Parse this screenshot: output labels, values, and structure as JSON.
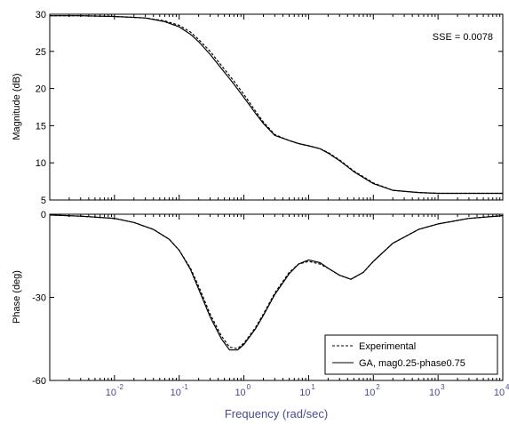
{
  "chart_data": [
    {
      "type": "line",
      "title": "",
      "xlabel": "",
      "ylabel": "Magnitude (dB)",
      "xscale": "log",
      "xlim": [
        0.001,
        10000
      ],
      "ylim": [
        5,
        30
      ],
      "yticks": [
        5,
        10,
        15,
        20,
        25,
        30
      ],
      "grid": false,
      "annotation": "SSE = 0.0078",
      "series": [
        {
          "name": "Experimental",
          "style": "dashed",
          "x": [
            0.001,
            0.003,
            0.01,
            0.03,
            0.06,
            0.1,
            0.15,
            0.2,
            0.3,
            0.5,
            0.7,
            1,
            1.5,
            2,
            3,
            5,
            7,
            10,
            15,
            20,
            30,
            50,
            100,
            200,
            500,
            1000,
            10000
          ],
          "y": [
            29.8,
            29.8,
            29.7,
            29.5,
            29.1,
            28.5,
            27.6,
            26.6,
            25.0,
            22.6,
            21.0,
            19.2,
            17.0,
            15.5,
            13.8,
            13.0,
            12.6,
            12.3,
            11.9,
            11.4,
            10.4,
            8.9,
            7.3,
            6.3,
            6.0,
            5.9,
            5.9
          ]
        },
        {
          "name": "GA, mag0.25-phase0.75",
          "style": "solid",
          "x": [
            0.001,
            0.003,
            0.01,
            0.03,
            0.06,
            0.1,
            0.15,
            0.2,
            0.3,
            0.5,
            0.7,
            1,
            1.5,
            2,
            3,
            5,
            7,
            10,
            15,
            20,
            30,
            50,
            100,
            200,
            500,
            1000,
            10000
          ],
          "y": [
            29.8,
            29.8,
            29.7,
            29.5,
            29.0,
            28.3,
            27.3,
            26.3,
            24.6,
            22.2,
            20.6,
            18.8,
            16.7,
            15.3,
            13.7,
            13.0,
            12.6,
            12.3,
            11.9,
            11.3,
            10.3,
            8.8,
            7.2,
            6.3,
            6.0,
            5.9,
            5.9
          ]
        }
      ]
    },
    {
      "type": "line",
      "title": "",
      "xlabel": "Frequency (rad/sec)",
      "ylabel": "Phase (deg)",
      "xscale": "log",
      "xlim": [
        0.001,
        10000
      ],
      "ylim": [
        -60,
        0
      ],
      "yticks": [
        -60,
        -30,
        0
      ],
      "xticks": [
        0.01,
        0.1,
        1,
        10,
        100,
        1000,
        10000
      ],
      "xtick_labels": [
        "10",
        "10",
        "10",
        "10",
        "10",
        "10",
        "10"
      ],
      "xtick_exponents": [
        "-2",
        "-1",
        "0",
        "1",
        "2",
        "3",
        "4"
      ],
      "grid": false,
      "legend": "bottom-right",
      "series": [
        {
          "name": "Experimental",
          "style": "dashed",
          "x": [
            0.001,
            0.003,
            0.01,
            0.02,
            0.04,
            0.07,
            0.1,
            0.15,
            0.2,
            0.3,
            0.45,
            0.6,
            0.8,
            1,
            1.5,
            2,
            3,
            5,
            7,
            10,
            15,
            20,
            30,
            45,
            70,
            100,
            200,
            500,
            1000,
            3000,
            10000
          ],
          "y": [
            -0.3,
            -0.7,
            -1.5,
            -3,
            -5.5,
            -9,
            -13,
            -19.5,
            -26,
            -36,
            -44,
            -48,
            -48.5,
            -46.5,
            -41,
            -36,
            -28.5,
            -21,
            -18,
            -17,
            -18,
            -19.5,
            -22,
            -23.5,
            -21,
            -17,
            -10.5,
            -5.5,
            -3.5,
            -1.5,
            -0.5
          ]
        },
        {
          "name": "GA, mag0.25-phase0.75",
          "style": "solid",
          "x": [
            0.001,
            0.003,
            0.01,
            0.02,
            0.04,
            0.07,
            0.1,
            0.15,
            0.2,
            0.3,
            0.45,
            0.6,
            0.8,
            1,
            1.5,
            2,
            3,
            5,
            7,
            10,
            15,
            20,
            30,
            45,
            70,
            100,
            200,
            500,
            1000,
            3000,
            10000
          ],
          "y": [
            -0.3,
            -0.7,
            -1.5,
            -3,
            -5.5,
            -9,
            -13,
            -20,
            -27,
            -37,
            -45,
            -49,
            -49,
            -47,
            -41.5,
            -36.5,
            -29,
            -21.5,
            -18,
            -16.5,
            -17.5,
            -19.5,
            -22,
            -23.5,
            -21,
            -17,
            -10.5,
            -5.5,
            -3.5,
            -1.5,
            -0.5
          ]
        }
      ]
    }
  ]
}
